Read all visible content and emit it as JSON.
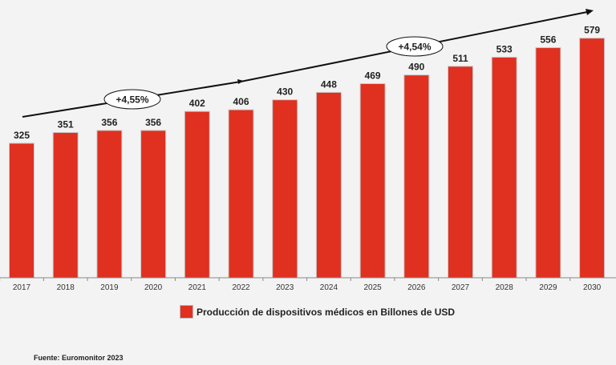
{
  "chart_data": {
    "type": "bar",
    "title": "",
    "xlabel": "",
    "ylabel": "",
    "categories": [
      "2017",
      "2018",
      "2019",
      "2020",
      "2021",
      "2022",
      "2023",
      "2024",
      "2025",
      "2026",
      "2027",
      "2028",
      "2029",
      "2030"
    ],
    "values": [
      325,
      351,
      356,
      356,
      402,
      406,
      430,
      448,
      469,
      490,
      511,
      533,
      556,
      579
    ],
    "ylim": [
      0,
      671
    ],
    "grid": false,
    "legend": {
      "entries": [
        "Producción de dispositivos médicos en Billones de USD"
      ],
      "placement": "bottom"
    },
    "annotations": [
      "+4,55%",
      "+4,54%"
    ],
    "bar_color": "#e03020"
  },
  "source": "Fuente: Euromonitor 2023"
}
